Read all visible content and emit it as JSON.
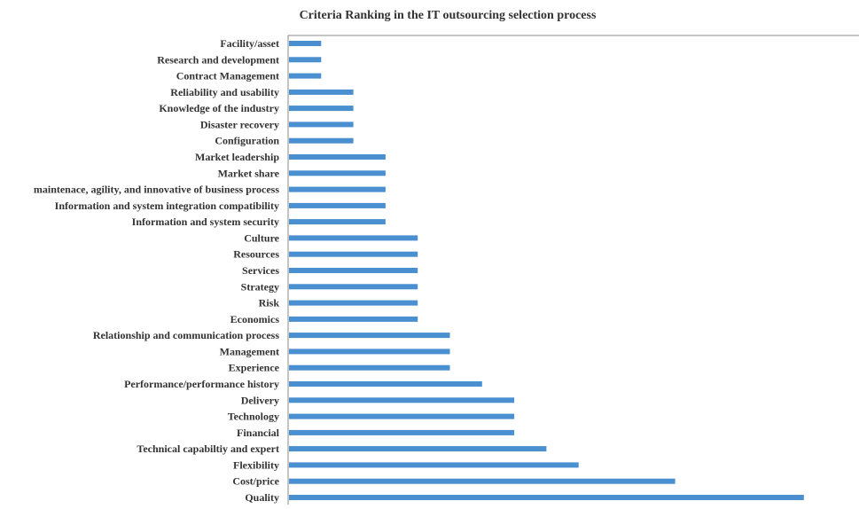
{
  "chart_data": {
    "type": "bar",
    "orientation": "horizontal",
    "title": "Criteria Ranking in the IT outsourcing selection process",
    "xlabel": "",
    "ylabel": "",
    "categories": [
      "Facility/asset",
      "Research and development",
      "Contract Management",
      "Reliability and usability",
      "Knowledge of the industry",
      "Disaster recovery",
      "Configuration",
      "Market leadership",
      "Market share",
      "maintenace, agility, and innovative of business process",
      "Information and system integration compatibility",
      "Information and system security",
      "Culture",
      "Resources",
      "Services",
      "Strategy",
      "Risk",
      "Economics",
      "Relationship and communication process",
      "Management",
      "Experience",
      "Performance/performance history",
      "Delivery",
      "Technology",
      "Financial",
      "Technical capabiltiy and expert",
      "Flexibility",
      "Cost/price",
      "Quality"
    ],
    "values": [
      1,
      1,
      1,
      2,
      2,
      2,
      2,
      3,
      3,
      3,
      3,
      3,
      4,
      4,
      4,
      4,
      4,
      4,
      5,
      5,
      5,
      6,
      7,
      7,
      7,
      8,
      9,
      12,
      16
    ],
    "xlim": [
      0,
      17
    ],
    "bar_color": "#4a8fd0",
    "axis_color": "#888888",
    "grid": false,
    "legend": "none"
  }
}
